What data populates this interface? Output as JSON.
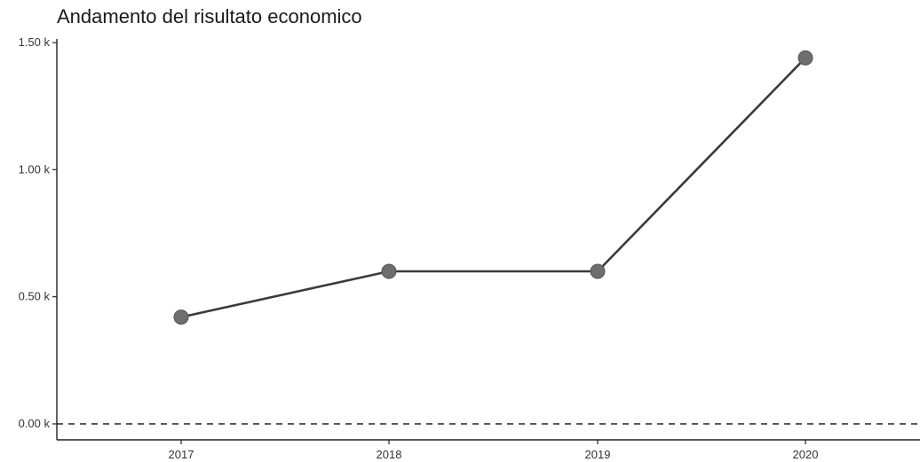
{
  "chart_data": {
    "type": "line",
    "title": "Andamento del risultato economico",
    "xlabel": "",
    "ylabel": "",
    "categories": [
      "2017",
      "2018",
      "2019",
      "2020"
    ],
    "series": [
      {
        "values": [
          0.42,
          0.6,
          0.6,
          1.44
        ]
      }
    ],
    "ylim": [
      0,
      1.5
    ],
    "yticks": [
      0,
      0.5,
      1.0,
      1.5
    ],
    "ytick_labels": [
      "0.00 k",
      "0.50 k",
      "1.00 k",
      "1.50 k"
    ],
    "reference_line": {
      "y": 0,
      "style": "dashed"
    },
    "grid": false,
    "line_color": "#3a3a3a",
    "marker_color": "#6e6e6e"
  }
}
